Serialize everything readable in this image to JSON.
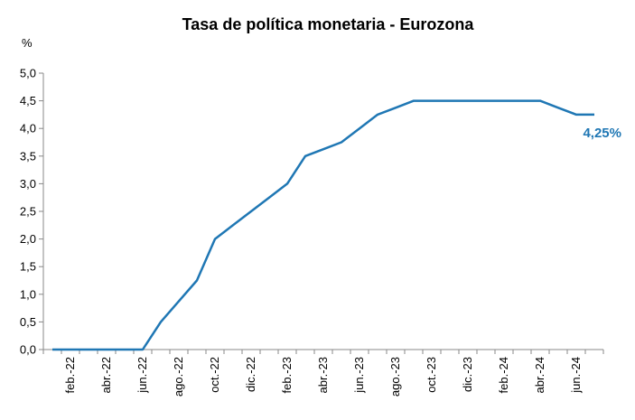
{
  "chart_data": {
    "type": "line",
    "title": "Tasa de política monetaria - Eurozona",
    "ylabel": "%",
    "xlabel": "",
    "ylim": [
      0,
      5
    ],
    "y_ticks": [
      "0,0",
      "0,5",
      "1,0",
      "1,5",
      "2,0",
      "2,5",
      "3,0",
      "3,5",
      "4,0",
      "4,5",
      "5,0"
    ],
    "x_tick_labels": [
      "feb.-22",
      "abr.-22",
      "jun.-22",
      "ago.-22",
      "oct.-22",
      "dic.-22",
      "feb.-23",
      "abr.-23",
      "jun.-23",
      "ago.-23",
      "oct.-23",
      "dic.-23",
      "feb.-24",
      "abr.-24",
      "jun.-24"
    ],
    "x": [
      "ene.-22",
      "feb.-22",
      "mar.-22",
      "abr.-22",
      "may.-22",
      "jun.-22",
      "jul.-22",
      "ago.-22",
      "sep.-22",
      "oct.-22",
      "nov.-22",
      "dic.-22",
      "ene.-23",
      "feb.-23",
      "mar.-23",
      "abr.-23",
      "may.-23",
      "jun.-23",
      "jul.-23",
      "ago.-23",
      "sep.-23",
      "oct.-23",
      "nov.-23",
      "dic.-23",
      "ene.-24",
      "feb.-24",
      "mar.-24",
      "abr.-24",
      "may.-24",
      "jun.-24",
      "jul.-24"
    ],
    "series": [
      {
        "values": [
          0,
          0,
          0,
          0,
          0,
          0,
          0.5,
          0.875,
          1.25,
          2.0,
          2.25,
          2.5,
          2.75,
          3.0,
          3.5,
          3.625,
          3.75,
          4.0,
          4.25,
          4.375,
          4.5,
          4.5,
          4.5,
          4.5,
          4.5,
          4.5,
          4.5,
          4.5,
          4.375,
          4.25,
          4.25
        ],
        "color": "#1f77b4"
      }
    ],
    "annotation": {
      "text": "4,25%",
      "color": "#1f77b4"
    },
    "grid": false,
    "legend": "none"
  }
}
